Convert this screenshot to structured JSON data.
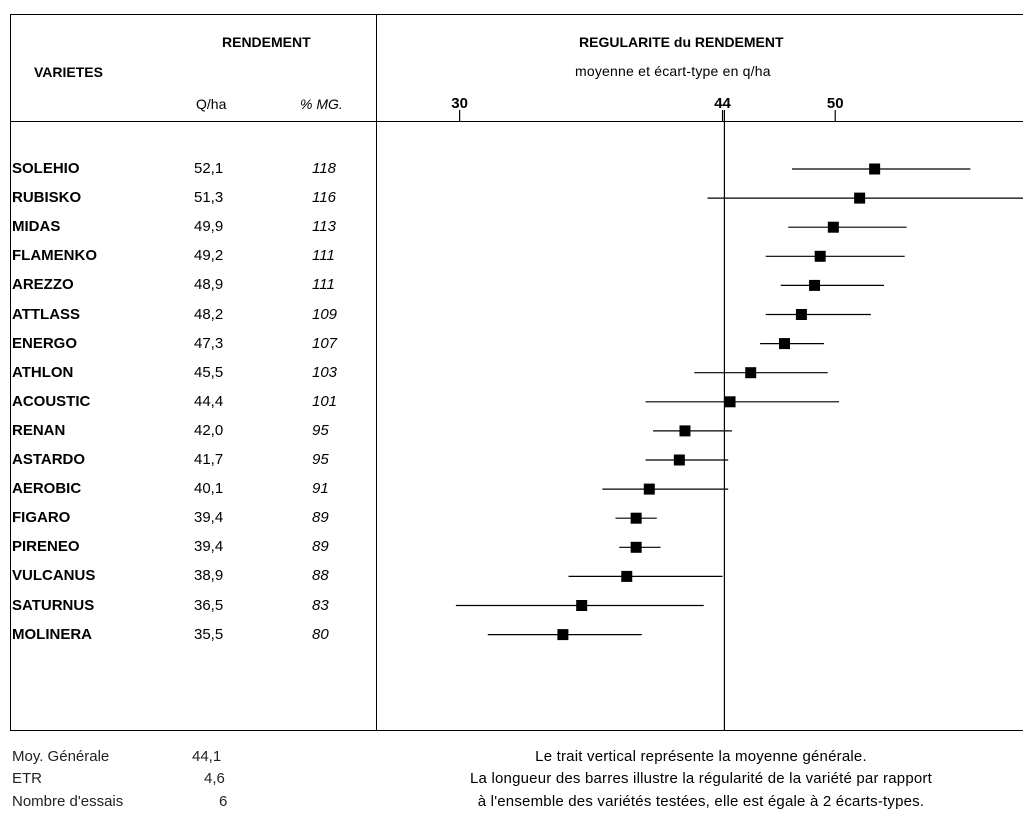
{
  "header": {
    "varietes": "VARIETES",
    "rendement": "RENDEMENT",
    "unit_qha": "Q/ha",
    "unit_pct": "% MG.",
    "chart_title": "REGULARITE du RENDEMENT",
    "chart_subtitle": "moyenne et écart-type en q/ha"
  },
  "rows": [
    {
      "name": "SOLEHIO",
      "qha": "52,1",
      "pct": "118"
    },
    {
      "name": "RUBISKO",
      "qha": "51,3",
      "pct": "116"
    },
    {
      "name": "MIDAS",
      "qha": "49,9",
      "pct": "113"
    },
    {
      "name": "FLAMENKO",
      "qha": "49,2",
      "pct": "111"
    },
    {
      "name": "AREZZO",
      "qha": "48,9",
      "pct": "111"
    },
    {
      "name": "ATTLASS",
      "qha": "48,2",
      "pct": "109"
    },
    {
      "name": "ENERGO",
      "qha": "47,3",
      "pct": "107"
    },
    {
      "name": "ATHLON",
      "qha": "45,5",
      "pct": "103"
    },
    {
      "name": "ACOUSTIC",
      "qha": "44,4",
      "pct": "101"
    },
    {
      "name": "RENAN",
      "qha": "42,0",
      "pct": "95"
    },
    {
      "name": "ASTARDO",
      "qha": "41,7",
      "pct": "95"
    },
    {
      "name": "AEROBIC",
      "qha": "40,1",
      "pct": "91"
    },
    {
      "name": "FIGARO",
      "qha": "39,4",
      "pct": "89"
    },
    {
      "name": "PIRENEO",
      "qha": "39,4",
      "pct": "89"
    },
    {
      "name": "VULCANUS",
      "qha": "38,9",
      "pct": "88"
    },
    {
      "name": "SATURNUS",
      "qha": "36,5",
      "pct": "83"
    },
    {
      "name": "MOLINERA",
      "qha": "35,5",
      "pct": "80"
    }
  ],
  "footer": {
    "moy_label": "Moy. Générale",
    "moy_value": "44,1",
    "etr_label": "ETR",
    "etr_value": "4,6",
    "essais_label": "Nombre d'essais",
    "essais_value": "6",
    "note_1": "Le trait vertical représente la moyenne générale.",
    "note_2": "La longueur des barres illustre la régularité de la variété par rapport",
    "note_3": "à l'ensemble des variétés testées, elle est égale à 2 écarts-types."
  },
  "chart_data": {
    "type": "scatter",
    "title": "REGULARITE du RENDEMENT",
    "subtitle": "moyenne et écart-type en q/ha",
    "x_ticks": [
      30,
      44,
      50
    ],
    "xlim": [
      25.6,
      60.0
    ],
    "reference_line": 44.1,
    "series": [
      {
        "values": [
          52.1,
          51.3,
          49.9,
          49.2,
          48.9,
          48.2,
          47.3,
          45.5,
          44.4,
          42.0,
          41.7,
          40.1,
          39.4,
          39.4,
          38.9,
          36.5,
          35.5
        ]
      }
    ],
    "error_low": [
      47.7,
      43.2,
      47.5,
      46.3,
      47.1,
      46.3,
      46.0,
      42.5,
      39.9,
      40.3,
      39.9,
      37.6,
      38.3,
      38.5,
      35.8,
      29.8,
      31.5
    ],
    "error_high": [
      57.2,
      60.0,
      53.8,
      53.7,
      52.6,
      51.9,
      49.4,
      49.6,
      50.2,
      44.5,
      44.3,
      44.3,
      40.5,
      40.7,
      44.0,
      43.0,
      39.7
    ]
  }
}
